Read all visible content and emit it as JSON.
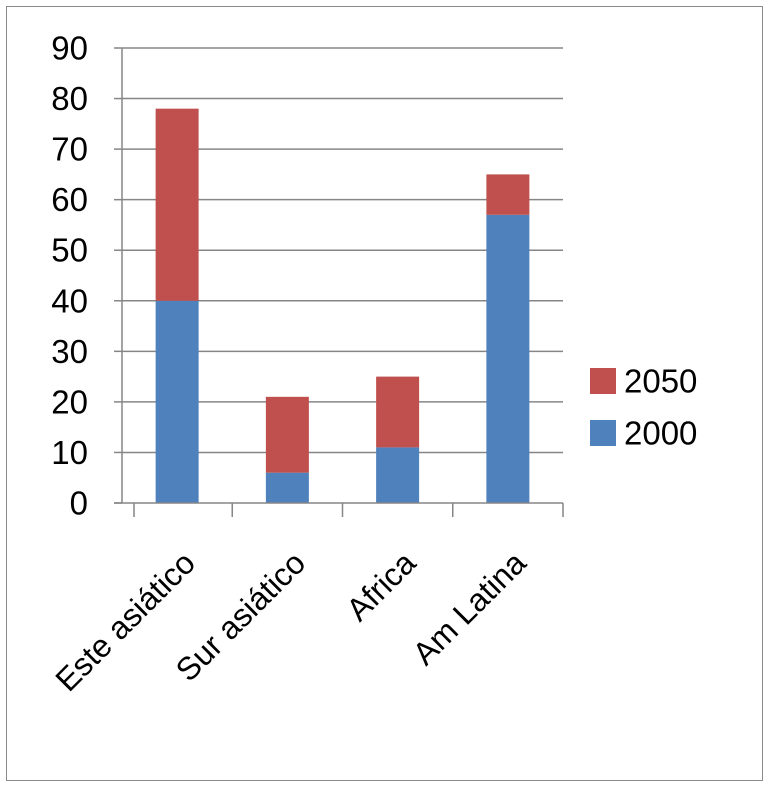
{
  "chart_data": {
    "type": "bar",
    "stacked": true,
    "categories": [
      "Este asiático",
      "Sur asiático",
      "Africa",
      "Am Latina"
    ],
    "series": [
      {
        "name": "2000",
        "values": [
          40,
          6,
          11,
          57
        ],
        "color": "#4F81BD"
      },
      {
        "name": "2050",
        "values": [
          38,
          15,
          14,
          8
        ],
        "color": "#C0504D"
      }
    ],
    "ylim": [
      0,
      90
    ],
    "yticks": [
      0,
      10,
      20,
      30,
      40,
      50,
      60,
      70,
      80,
      90
    ],
    "grid": true,
    "legend": "right",
    "legend_order": [
      "2050",
      "2000"
    ]
  }
}
